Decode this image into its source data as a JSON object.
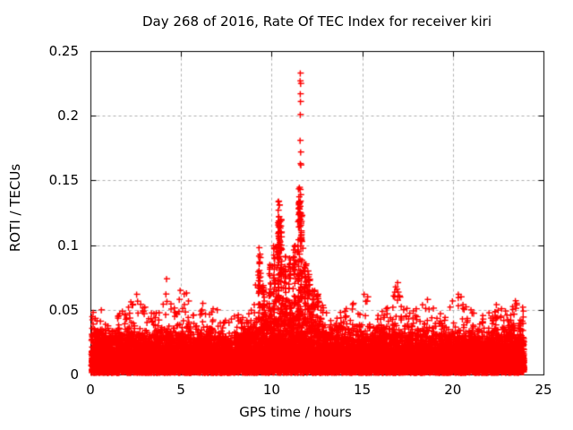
{
  "chart_data": {
    "type": "scatter",
    "title": "Day 268 of 2016, Rate Of TEC Index for receiver kiri",
    "xlabel": "GPS time / hours",
    "ylabel": "ROTI / TECUs",
    "xlim": [
      0,
      25
    ],
    "ylim": [
      0,
      0.25
    ],
    "xticks": {
      "values": [
        0,
        5,
        10,
        15,
        20,
        25
      ],
      "labels": [
        "0",
        "5",
        "10",
        "15",
        "20",
        "25"
      ]
    },
    "yticks": {
      "values": [
        0,
        0.05,
        0.1,
        0.15,
        0.2,
        0.25
      ],
      "labels": [
        "0",
        "0.05",
        "0.1",
        "0.15",
        "0.2",
        "0.25"
      ]
    },
    "grid": {
      "visible": true,
      "color": "#b0b0b0",
      "dash": [
        3,
        3
      ]
    },
    "border_color": "#000000",
    "background_color": "#ffffff",
    "text_color": "#000000",
    "legend": "none",
    "marker": {
      "shape": "plus",
      "color": "#ff0000",
      "size": 7,
      "stroke": 1.4
    },
    "data_extent": {
      "x_start": 0.03,
      "x_end": 23.92
    },
    "seed": 268,
    "dense_band": {
      "n": 13000,
      "y_base": 0.0015,
      "sigma_scale": 0.45,
      "top_envelope": [
        [
          0,
          0.03
        ],
        [
          1,
          0.027
        ],
        [
          2,
          0.029
        ],
        [
          3,
          0.027
        ],
        [
          4,
          0.029
        ],
        [
          5,
          0.031
        ],
        [
          6,
          0.029
        ],
        [
          7,
          0.027
        ],
        [
          8,
          0.027
        ],
        [
          9,
          0.033
        ],
        [
          9.5,
          0.038
        ],
        [
          10,
          0.043
        ],
        [
          10.5,
          0.048
        ],
        [
          11,
          0.044
        ],
        [
          11.5,
          0.048
        ],
        [
          12,
          0.043
        ],
        [
          12.5,
          0.037
        ],
        [
          13,
          0.032
        ],
        [
          13.5,
          0.03
        ],
        [
          14,
          0.029
        ],
        [
          15,
          0.028
        ],
        [
          16,
          0.03
        ],
        [
          17,
          0.032
        ],
        [
          18,
          0.029
        ],
        [
          19,
          0.028
        ],
        [
          20,
          0.03
        ],
        [
          21,
          0.028
        ],
        [
          22,
          0.029
        ],
        [
          23,
          0.031
        ],
        [
          23.92,
          0.029
        ]
      ]
    },
    "upper_noise": {
      "n": 1100,
      "low_bias_exponent": 2.2,
      "max_envelope": [
        [
          0,
          0.048
        ],
        [
          0.5,
          0.042
        ],
        [
          1,
          0.04
        ],
        [
          1.5,
          0.046
        ],
        [
          2,
          0.052
        ],
        [
          2.5,
          0.062
        ],
        [
          3,
          0.052
        ],
        [
          3.5,
          0.048
        ],
        [
          4,
          0.056
        ],
        [
          4.3,
          0.07
        ],
        [
          4.7,
          0.052
        ],
        [
          5,
          0.064
        ],
        [
          5.4,
          0.06
        ],
        [
          5.8,
          0.05
        ],
        [
          6.2,
          0.056
        ],
        [
          6.6,
          0.052
        ],
        [
          7,
          0.05
        ],
        [
          7.5,
          0.042
        ],
        [
          8,
          0.046
        ],
        [
          8.5,
          0.05
        ],
        [
          9,
          0.06
        ],
        [
          9.3,
          0.09
        ],
        [
          9.6,
          0.072
        ],
        [
          9.9,
          0.082
        ],
        [
          10.2,
          0.1
        ],
        [
          10.4,
          0.13
        ],
        [
          10.6,
          0.1
        ],
        [
          10.8,
          0.082
        ],
        [
          11,
          0.088
        ],
        [
          11.3,
          0.1
        ],
        [
          11.55,
          0.14
        ],
        [
          11.7,
          0.12
        ],
        [
          11.9,
          0.085
        ],
        [
          12.1,
          0.075
        ],
        [
          12.4,
          0.065
        ],
        [
          12.7,
          0.058
        ],
        [
          13,
          0.05
        ],
        [
          13.5,
          0.046
        ],
        [
          14,
          0.05
        ],
        [
          14.5,
          0.056
        ],
        [
          15,
          0.046
        ],
        [
          15.2,
          0.06
        ],
        [
          15.6,
          0.046
        ],
        [
          16,
          0.05
        ],
        [
          16.4,
          0.055
        ],
        [
          16.9,
          0.07
        ],
        [
          17.2,
          0.056
        ],
        [
          17.6,
          0.05
        ],
        [
          18,
          0.052
        ],
        [
          18.6,
          0.058
        ],
        [
          19,
          0.05
        ],
        [
          19.5,
          0.046
        ],
        [
          20,
          0.058
        ],
        [
          20.4,
          0.062
        ],
        [
          20.8,
          0.052
        ],
        [
          21.2,
          0.048
        ],
        [
          21.6,
          0.046
        ],
        [
          22,
          0.05
        ],
        [
          22.4,
          0.054
        ],
        [
          22.8,
          0.05
        ],
        [
          23.2,
          0.052
        ],
        [
          23.5,
          0.056
        ],
        [
          23.92,
          0.05
        ]
      ]
    },
    "spike_columns": [
      {
        "x": 9.32,
        "y_min": 0.04,
        "y_max": 0.098,
        "n": 22
      },
      {
        "x": 9.55,
        "y_min": 0.035,
        "y_max": 0.075,
        "n": 15
      },
      {
        "x": 9.9,
        "y_min": 0.035,
        "y_max": 0.085,
        "n": 18
      },
      {
        "x": 10.15,
        "y_min": 0.04,
        "y_max": 0.1,
        "n": 20
      },
      {
        "x": 10.38,
        "y_min": 0.05,
        "y_max": 0.136,
        "n": 42
      },
      {
        "x": 10.5,
        "y_min": 0.045,
        "y_max": 0.12,
        "n": 30
      },
      {
        "x": 10.75,
        "y_min": 0.04,
        "y_max": 0.095,
        "n": 18
      },
      {
        "x": 11.0,
        "y_min": 0.04,
        "y_max": 0.09,
        "n": 20
      },
      {
        "x": 11.25,
        "y_min": 0.04,
        "y_max": 0.1,
        "n": 18
      },
      {
        "x": 11.5,
        "y_min": 0.05,
        "y_max": 0.146,
        "n": 40
      },
      {
        "x": 11.62,
        "y_min": 0.045,
        "y_max": 0.125,
        "n": 30
      },
      {
        "x": 11.85,
        "y_min": 0.04,
        "y_max": 0.09,
        "n": 18
      },
      {
        "x": 12.05,
        "y_min": 0.035,
        "y_max": 0.08,
        "n": 16
      },
      {
        "x": 12.3,
        "y_min": 0.035,
        "y_max": 0.065,
        "n": 12
      },
      {
        "x": 12.55,
        "y_min": 0.03,
        "y_max": 0.062,
        "n": 12
      }
    ],
    "outliers": [
      [
        11.58,
        0.233
      ],
      [
        11.57,
        0.227
      ],
      [
        11.6,
        0.225
      ],
      [
        11.58,
        0.217
      ],
      [
        11.59,
        0.211
      ],
      [
        11.58,
        0.201
      ],
      [
        11.57,
        0.181
      ],
      [
        11.6,
        0.172
      ],
      [
        11.58,
        0.163
      ],
      [
        11.61,
        0.162
      ],
      [
        11.57,
        0.143
      ],
      [
        11.6,
        0.139
      ],
      [
        11.58,
        0.134
      ],
      [
        11.56,
        0.13
      ],
      [
        11.59,
        0.124
      ],
      [
        11.57,
        0.12
      ],
      [
        11.61,
        0.117
      ],
      [
        10.38,
        0.134
      ],
      [
        10.42,
        0.131
      ],
      [
        10.36,
        0.127
      ],
      [
        10.4,
        0.122
      ],
      [
        10.44,
        0.118
      ],
      [
        10.37,
        0.114
      ],
      [
        10.41,
        0.11
      ],
      [
        10.39,
        0.106
      ],
      [
        10.43,
        0.102
      ],
      [
        9.3,
        0.098
      ],
      [
        9.35,
        0.093
      ],
      [
        9.9,
        0.085
      ],
      [
        11.0,
        0.09
      ],
      [
        12.0,
        0.08
      ],
      [
        12.55,
        0.062
      ],
      [
        4.2,
        0.074
      ],
      [
        4.95,
        0.065
      ],
      [
        5.3,
        0.063
      ],
      [
        2.55,
        0.062
      ],
      [
        2.1,
        0.052
      ],
      [
        3.0,
        0.052
      ],
      [
        6.2,
        0.055
      ],
      [
        7.0,
        0.05
      ],
      [
        0.15,
        0.048
      ],
      [
        0.6,
        0.05
      ],
      [
        1.5,
        0.045
      ],
      [
        13.8,
        0.048
      ],
      [
        14.5,
        0.055
      ],
      [
        15.1,
        0.062
      ],
      [
        16.95,
        0.071
      ],
      [
        16.9,
        0.066
      ],
      [
        15.3,
        0.06
      ],
      [
        18.6,
        0.058
      ],
      [
        20.3,
        0.062
      ],
      [
        20.45,
        0.06
      ],
      [
        21.0,
        0.05
      ],
      [
        22.4,
        0.054
      ],
      [
        23.45,
        0.057
      ],
      [
        23.5,
        0.055
      ],
      [
        23.85,
        0.052
      ],
      [
        23.88,
        0.049
      ]
    ]
  }
}
